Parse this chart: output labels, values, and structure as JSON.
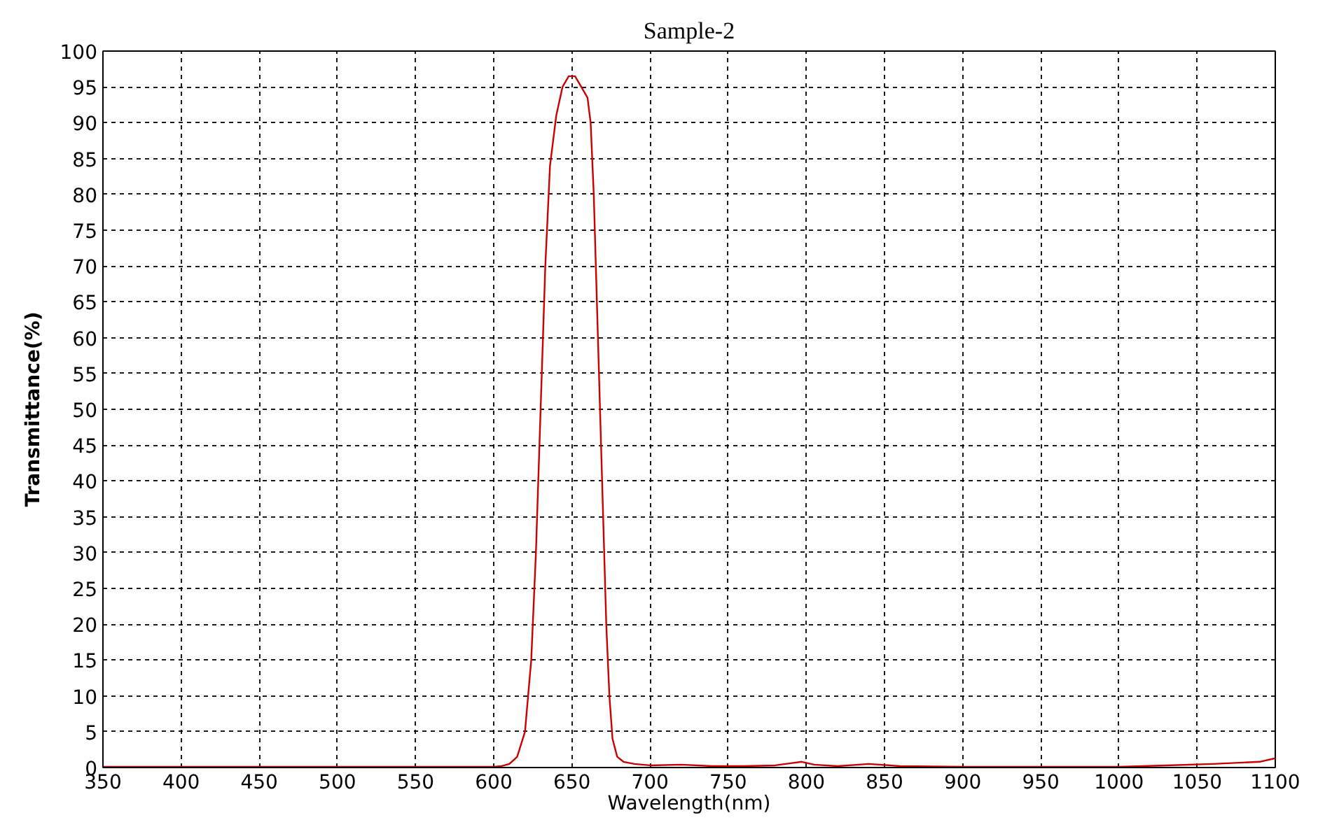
{
  "chart_data": {
    "type": "line",
    "title": "Sample-2",
    "xlabel": "Wavelength(nm)",
    "ylabel": "Transmittance(%)",
    "x": [
      350,
      400,
      450,
      500,
      550,
      600,
      605,
      610,
      615,
      620,
      624,
      627,
      630,
      633,
      636,
      640,
      644,
      648,
      652,
      656,
      660,
      662,
      664,
      666,
      668,
      670,
      672,
      674,
      676,
      679,
      683,
      690,
      700,
      720,
      740,
      760,
      780,
      790,
      797,
      805,
      820,
      840,
      860,
      900,
      950,
      1000,
      1030,
      1060,
      1090,
      1100
    ],
    "series": [
      {
        "color": "#cc0000",
        "values": [
          0.1,
          0.1,
          0.1,
          0.1,
          0.1,
          0.1,
          0.2,
          0.5,
          1.5,
          5,
          15,
          30,
          50,
          70,
          84,
          91,
          95,
          96.5,
          96.5,
          95,
          93.5,
          90,
          80,
          65,
          50,
          35,
          20,
          10,
          4,
          1.5,
          0.8,
          0.5,
          0.3,
          0.4,
          0.2,
          0.2,
          0.3,
          0.6,
          0.8,
          0.4,
          0.2,
          0.5,
          0.2,
          0.1,
          0.1,
          0.1,
          0.3,
          0.5,
          0.8,
          1.3
        ]
      }
    ],
    "xlim": [
      350,
      1100
    ],
    "ylim": [
      0,
      100
    ],
    "xticks": [
      350,
      400,
      450,
      500,
      550,
      600,
      650,
      700,
      750,
      800,
      850,
      900,
      950,
      1000,
      1050,
      1100
    ],
    "yticks": [
      0,
      5,
      10,
      15,
      20,
      25,
      30,
      35,
      40,
      45,
      50,
      55,
      60,
      65,
      70,
      75,
      80,
      85,
      90,
      95,
      100
    ],
    "grid": true,
    "line_style": "solid"
  }
}
